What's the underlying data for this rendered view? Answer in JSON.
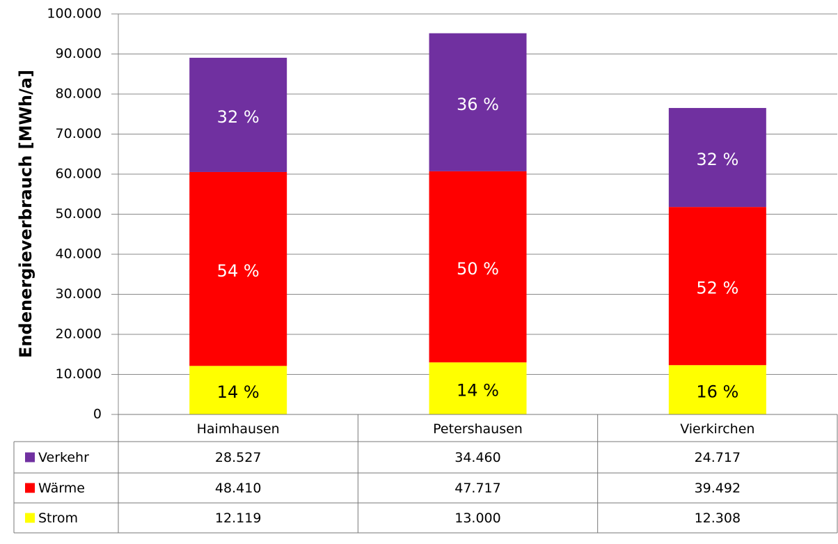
{
  "chart_data": {
    "type": "stacked_bar",
    "y_label": "Endenergieverbrauch [MWh/a]",
    "categories": [
      "Haimhausen",
      "Petershausen",
      "Vierkirchen"
    ],
    "series": [
      {
        "name": "Strom",
        "color": "#ffff00",
        "label_color": "#000000",
        "values": [
          12119,
          13000,
          12308
        ],
        "value_labels": [
          "12.119",
          "13.000",
          "12.308"
        ],
        "share_labels": [
          "14 %",
          "14 %",
          "16 %"
        ]
      },
      {
        "name": "Wärme",
        "color": "#ff0000",
        "label_color": "#ffffff",
        "values": [
          48410,
          47717,
          39492
        ],
        "value_labels": [
          "48.410",
          "47.717",
          "39.492"
        ],
        "share_labels": [
          "54 %",
          "50 %",
          "52 %"
        ]
      },
      {
        "name": "Verkehr",
        "color": "#7030a0",
        "label_color": "#ffffff",
        "values": [
          28527,
          34460,
          24717
        ],
        "value_labels": [
          "28.527",
          "34.460",
          "24.717"
        ],
        "share_labels": [
          "32 %",
          "36 %",
          "32 %"
        ]
      }
    ],
    "ylim": [
      0,
      100000
    ],
    "yticks": [
      0,
      {
        "value": 10000,
        "label": "10.000"
      },
      {
        "value": 20000,
        "label": "20.000"
      },
      {
        "value": 30000,
        "label": "30.000"
      },
      {
        "value": 40000,
        "label": "40.000"
      },
      {
        "value": 50000,
        "label": "50.000"
      },
      {
        "value": 60000,
        "label": "60.000"
      },
      {
        "value": 70000,
        "label": "70.000"
      },
      {
        "value": 80000,
        "label": "80.000"
      },
      {
        "value": 90000,
        "label": "90.000"
      },
      {
        "value": 100000,
        "label": "100.000"
      }
    ],
    "grid": true
  }
}
